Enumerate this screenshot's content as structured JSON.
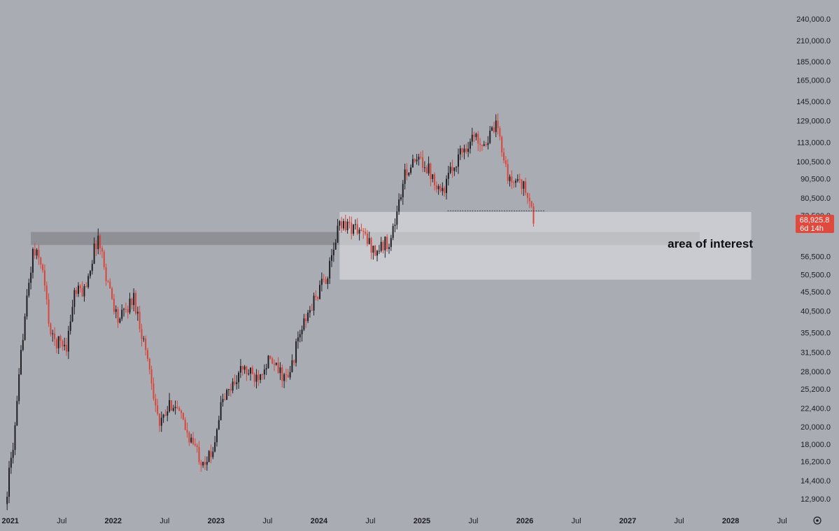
{
  "chart_data": {
    "type": "candlestick",
    "title": "",
    "x_axis": {
      "labels": [
        "2021",
        "Jul",
        "2022",
        "Jul",
        "2023",
        "Jul",
        "2024",
        "Jul",
        "2025",
        "Jul",
        "2026",
        "Jul",
        "2027",
        "Jul",
        "2028",
        "Jul"
      ]
    },
    "y_axis": {
      "scale": "log",
      "ylim": [
        12000,
        260000
      ],
      "tick_labels": [
        "240,000.0",
        "210,000.0",
        "185,000.0",
        "165,000.0",
        "145,000.0",
        "129,000.0",
        "113,000.0",
        "100,500.0",
        "90,500.0",
        "80,500.0",
        "72,500.0",
        "56,500.0",
        "50,500.0",
        "45,500.0",
        "40,500.0",
        "35,500.0",
        "31,500.0",
        "28,000.0",
        "25,200.0",
        "22,400.0",
        "20,000.0",
        "18,000.0",
        "16,200.0",
        "14,400.0",
        "12,900.0"
      ]
    },
    "price_tag": {
      "price": "68,925.8",
      "countdown": "6d 14h",
      "color": "#e0493d"
    },
    "colors": {
      "up": "#1f1f24",
      "down": "#d8463b",
      "background": "#aaacb4"
    },
    "approximate_path": [
      {
        "t": 2020.95,
        "close": 12500
      },
      {
        "t": 2021.05,
        "close": 20000
      },
      {
        "t": 2021.12,
        "close": 35000
      },
      {
        "t": 2021.22,
        "close": 58000
      },
      {
        "t": 2021.3,
        "close": 55000
      },
      {
        "t": 2021.4,
        "close": 34000
      },
      {
        "t": 2021.55,
        "close": 33000
      },
      {
        "t": 2021.62,
        "close": 45000
      },
      {
        "t": 2021.72,
        "close": 46000
      },
      {
        "t": 2021.85,
        "close": 64000
      },
      {
        "t": 2021.95,
        "close": 48000
      },
      {
        "t": 2022.05,
        "close": 38000
      },
      {
        "t": 2022.2,
        "close": 44000
      },
      {
        "t": 2022.35,
        "close": 29000
      },
      {
        "t": 2022.45,
        "close": 20000
      },
      {
        "t": 2022.58,
        "close": 23500
      },
      {
        "t": 2022.72,
        "close": 19300
      },
      {
        "t": 2022.85,
        "close": 16500
      },
      {
        "t": 2022.95,
        "close": 16600
      },
      {
        "t": 2023.05,
        "close": 23000
      },
      {
        "t": 2023.25,
        "close": 28500
      },
      {
        "t": 2023.38,
        "close": 27000
      },
      {
        "t": 2023.5,
        "close": 30000
      },
      {
        "t": 2023.7,
        "close": 26500
      },
      {
        "t": 2023.8,
        "close": 34500
      },
      {
        "t": 2023.95,
        "close": 43000
      },
      {
        "t": 2024.1,
        "close": 52000
      },
      {
        "t": 2024.2,
        "close": 70000
      },
      {
        "t": 2024.4,
        "close": 66000
      },
      {
        "t": 2024.55,
        "close": 58000
      },
      {
        "t": 2024.7,
        "close": 63000
      },
      {
        "t": 2024.85,
        "close": 96000
      },
      {
        "t": 2025.0,
        "close": 102000
      },
      {
        "t": 2025.2,
        "close": 84000
      },
      {
        "t": 2025.35,
        "close": 104000
      },
      {
        "t": 2025.5,
        "close": 117000
      },
      {
        "t": 2025.62,
        "close": 113000
      },
      {
        "t": 2025.72,
        "close": 124000
      },
      {
        "t": 2025.78,
        "close": 110000
      },
      {
        "t": 2025.85,
        "close": 88000
      },
      {
        "t": 2025.95,
        "close": 91000
      },
      {
        "t": 2026.05,
        "close": 78000
      },
      {
        "t": 2026.1,
        "close": 68925.8
      }
    ],
    "annotations": [
      {
        "type": "zone",
        "x_start": 2021.2,
        "x_end": 2027.7,
        "y_low": 60500,
        "y_high": 65500,
        "color": "#8a8b91",
        "opacity": 0.85
      },
      {
        "type": "zone",
        "x_start": 2024.2,
        "x_end": 2028.2,
        "y_low": 49000,
        "y_high": 74000,
        "color": "#e4e5ea",
        "opacity": 0.55
      },
      {
        "type": "dotted_line",
        "x_start": 2025.25,
        "x_end": 2026.2,
        "y": 74500
      }
    ],
    "annotation_text": "area of interest"
  }
}
